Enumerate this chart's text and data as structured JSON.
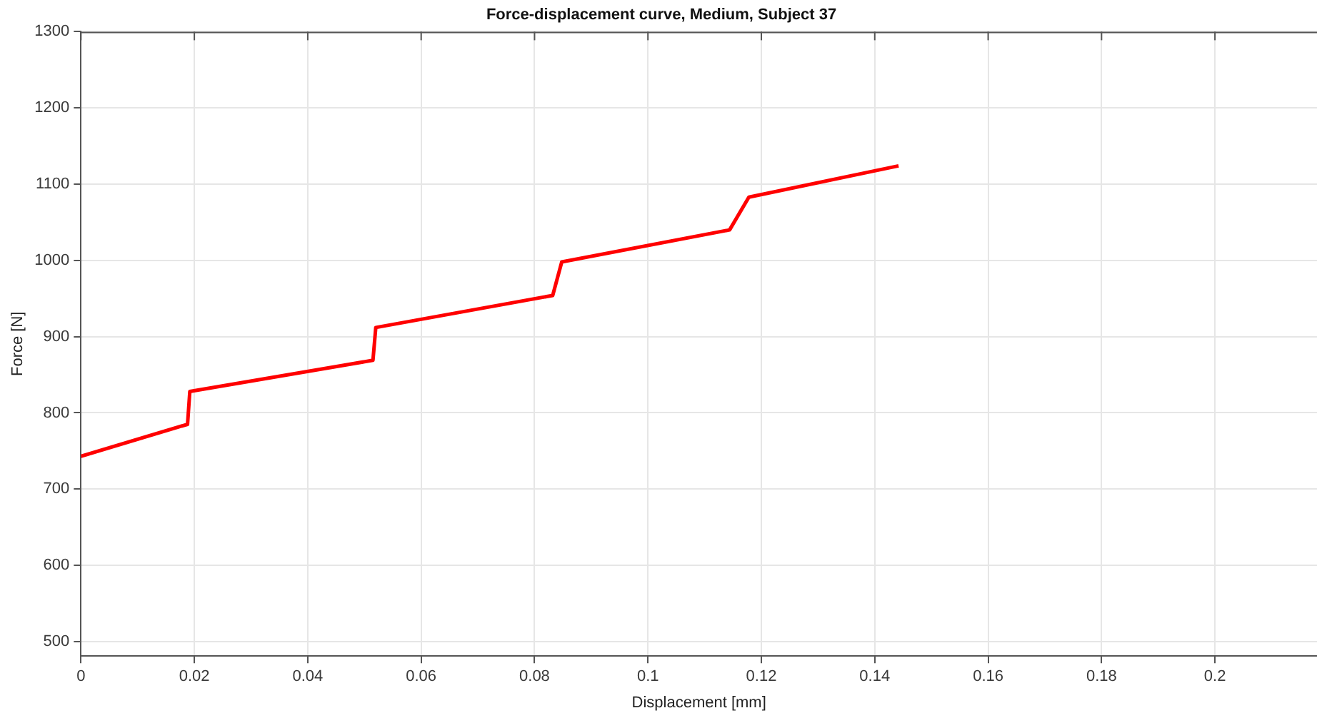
{
  "chart_data": {
    "type": "line",
    "title": "Force-displacement curve, Medium, Subject 37",
    "xlabel": "Displacement [mm]",
    "ylabel": "Force [N]",
    "x": [
      0,
      0.0188,
      0.0192,
      0.0515,
      0.052,
      0.0832,
      0.0848,
      0.1144,
      0.1178,
      0.1442
    ],
    "series": [
      {
        "color": "#ff0000",
        "values": [
          743,
          785,
          828,
          869,
          912,
          954,
          998,
          1040,
          1083,
          1124
        ]
      }
    ],
    "xlim": [
      0,
      0.218
    ],
    "ylim": [
      481,
      1300
    ],
    "xticks": [
      0,
      0.02,
      0.04,
      0.06,
      0.08,
      0.1,
      0.12,
      0.14,
      0.16,
      0.18,
      0.2
    ],
    "yticks": [
      500,
      600,
      700,
      800,
      900,
      1000,
      1100,
      1200,
      1300
    ],
    "grid": true,
    "legend": false,
    "marker": "none",
    "line_style": "solid"
  }
}
